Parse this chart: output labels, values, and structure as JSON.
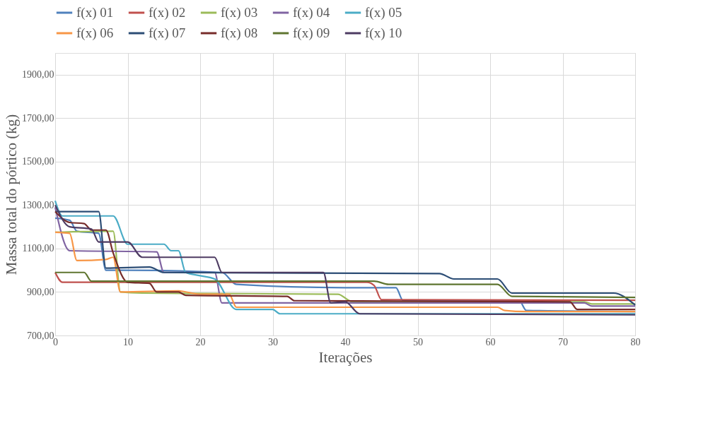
{
  "chart_data": {
    "type": "line",
    "xlabel": "Iterações",
    "ylabel": "Massa total do pórtico (kg)",
    "xlim": [
      0,
      80
    ],
    "xticks": [
      0,
      10,
      20,
      30,
      40,
      50,
      60,
      70,
      80
    ],
    "ylim": [
      700,
      2000
    ],
    "yticks": [
      {
        "value": 700,
        "label": "700,00"
      },
      {
        "value": 900,
        "label": "900,00"
      },
      {
        "value": 1100,
        "label": "1100,00"
      },
      {
        "value": 1300,
        "label": "1300,00"
      },
      {
        "value": 1500,
        "label": "1500,00"
      },
      {
        "value": 1700,
        "label": "1700,00"
      },
      {
        "value": 1900,
        "label": "1900,00"
      }
    ],
    "grid": true,
    "legend": "top",
    "marker": "none",
    "line_style": "solid",
    "series": [
      {
        "name": "f(x) 01",
        "color": "#4f81bd",
        "x": [
          0,
          2,
          3,
          6,
          7,
          10,
          23,
          25,
          40,
          47,
          48,
          64,
          65,
          80
        ],
        "values": [
          1240,
          1230,
          1180,
          1170,
          1000,
          1000,
          990,
          935,
          920,
          920,
          860,
          860,
          815,
          810
        ]
      },
      {
        "name": "f(x) 02",
        "color": "#c0504d",
        "x": [
          0,
          1,
          43,
          44,
          45,
          80
        ],
        "values": [
          990,
          945,
          945,
          930,
          865,
          862
        ]
      },
      {
        "name": "f(x) 03",
        "color": "#9bbb59",
        "x": [
          0,
          8,
          9,
          12,
          39,
          41,
          73,
          74,
          80
        ],
        "values": [
          1175,
          1180,
          900,
          895,
          890,
          855,
          855,
          845,
          845
        ]
      },
      {
        "name": "f(x) 04",
        "color": "#8064a2",
        "x": [
          0,
          2,
          14,
          15,
          22,
          23,
          73,
          74,
          80
        ],
        "values": [
          1290,
          1090,
          1085,
          990,
          990,
          850,
          850,
          835,
          835
        ]
      },
      {
        "name": "f(x) 05",
        "color": "#4bacc6",
        "x": [
          0,
          1,
          8,
          10,
          15,
          16,
          17,
          18,
          20,
          22,
          25,
          30,
          31,
          80
        ],
        "values": [
          1320,
          1250,
          1250,
          1120,
          1120,
          1090,
          1090,
          990,
          975,
          960,
          820,
          820,
          800,
          800
        ]
      },
      {
        "name": "f(x) 06",
        "color": "#f79646",
        "x": [
          0,
          2,
          3,
          7,
          8,
          9,
          17,
          20,
          24,
          25,
          61,
          62,
          65,
          80
        ],
        "values": [
          1175,
          1170,
          1045,
          1050,
          1060,
          900,
          905,
          890,
          890,
          830,
          830,
          815,
          810,
          810
        ]
      },
      {
        "name": "f(x) 07",
        "color": "#2c4d75",
        "x": [
          0,
          6,
          7,
          13,
          15,
          53,
          55,
          61,
          63,
          77,
          80
        ],
        "values": [
          1270,
          1270,
          1010,
          1015,
          990,
          985,
          960,
          960,
          895,
          895,
          840
        ]
      },
      {
        "name": "f(x) 08",
        "color": "#772c2a",
        "x": [
          0,
          2,
          4,
          5,
          7,
          8,
          10,
          13,
          14,
          17,
          18,
          32,
          33,
          71,
          72,
          80
        ],
        "values": [
          1270,
          1220,
          1215,
          1185,
          1185,
          1080,
          945,
          940,
          900,
          900,
          885,
          880,
          860,
          855,
          820,
          820
        ]
      },
      {
        "name": "f(x) 09",
        "color": "#5f7530",
        "x": [
          0,
          4,
          5,
          44,
          46,
          61,
          63,
          80
        ],
        "values": [
          990,
          990,
          950,
          950,
          935,
          935,
          880,
          875
        ]
      },
      {
        "name": "f(x) 10",
        "color": "#4d3b62",
        "x": [
          0,
          2,
          5,
          6,
          10,
          12,
          22,
          23,
          37,
          38,
          40,
          42,
          80
        ],
        "values": [
          1300,
          1200,
          1190,
          1130,
          1130,
          1060,
          1060,
          990,
          990,
          850,
          855,
          800,
          795
        ]
      }
    ]
  }
}
